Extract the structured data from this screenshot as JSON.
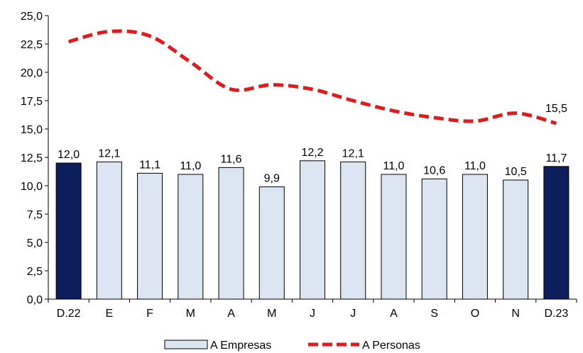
{
  "chart_data": {
    "type": "bar",
    "categories": [
      "D.22",
      "E",
      "F",
      "M",
      "A",
      "M",
      "J",
      "J",
      "A",
      "S",
      "O",
      "N",
      "D.23"
    ],
    "series": [
      {
        "name": "A Empresas",
        "kind": "bar",
        "values": [
          12.0,
          12.1,
          11.1,
          11.0,
          11.6,
          9.9,
          12.2,
          12.1,
          11.0,
          10.6,
          11.0,
          10.5,
          11.7
        ],
        "labels": [
          "12,0",
          "12,1",
          "11,1",
          "11,0",
          "11,6",
          "9,9",
          "12,2",
          "12,1",
          "11,0",
          "10,6",
          "11,0",
          "10,5",
          "11,7"
        ],
        "highlighted_categories": [
          "D.22",
          "D.23"
        ]
      },
      {
        "name": "A Personas",
        "kind": "line",
        "values": [
          22.7,
          23.6,
          23.2,
          20.9,
          18.5,
          18.9,
          18.5,
          17.5,
          16.6,
          16.0,
          15.7,
          16.4,
          15.5
        ],
        "end_label": "15,5"
      }
    ],
    "ylim": [
      0,
      25
    ],
    "yticks": [
      "0,0",
      "2,5",
      "5,0",
      "7,5",
      "10,0",
      "12,5",
      "15,0",
      "17,5",
      "20,0",
      "22,5",
      "25,0"
    ],
    "grid": false,
    "legend_position": "bottom",
    "title": "",
    "xlabel": "",
    "ylabel": ""
  },
  "colors": {
    "bar_fill": "#dce6f2",
    "bar_highlight_fill": "#0c1f5c",
    "bar_stroke": "#000000",
    "line": "#e31a1c",
    "axis": "#000000"
  }
}
